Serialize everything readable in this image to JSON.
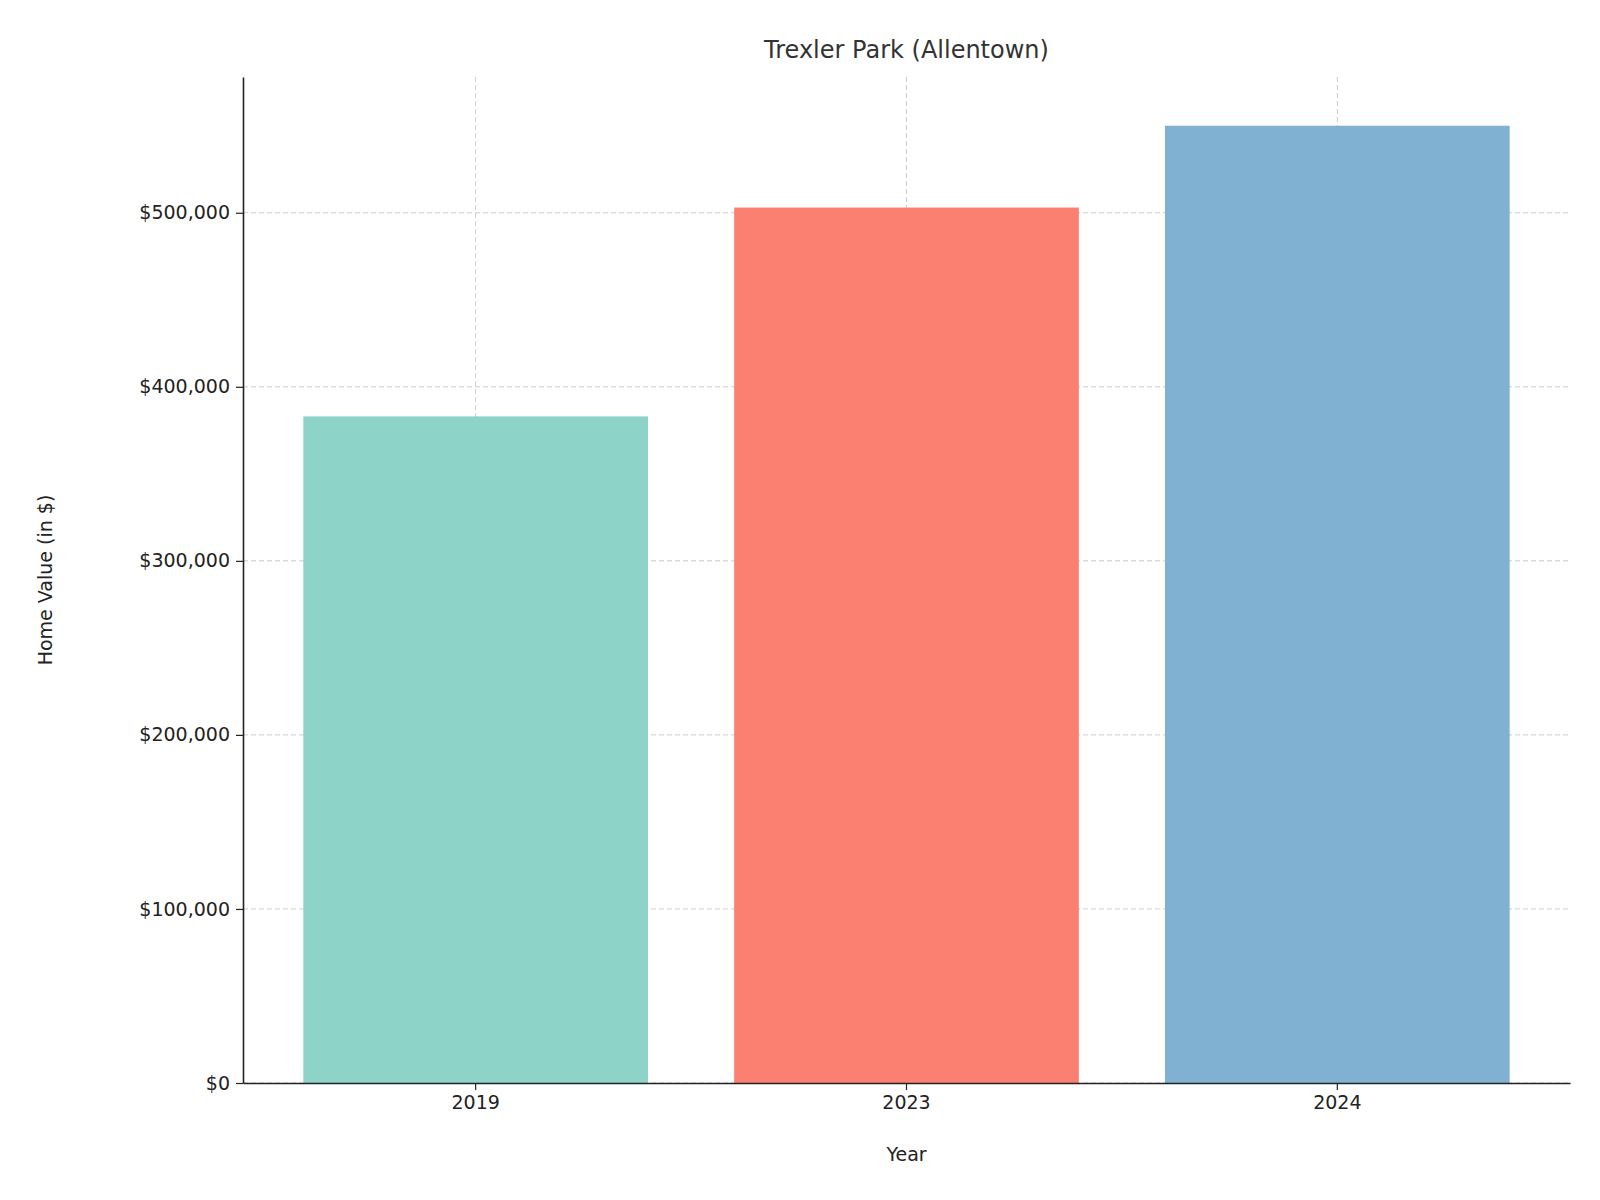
{
  "chart_data": {
    "type": "bar",
    "title": "Trexler Park (Allentown)",
    "x_label": "Year",
    "y_label": "Home Value (in $)",
    "categories": [
      "2019",
      "2023",
      "2024"
    ],
    "values": [
      383000,
      503000,
      550000
    ],
    "colors": [
      "#8dd3c7",
      "#fb8072",
      "#80b1d3"
    ],
    "ylim": [
      0,
      578000
    ],
    "yticks": [
      {
        "value": 0,
        "label": "$0"
      },
      {
        "value": 100000,
        "label": "$100,000"
      },
      {
        "value": 200000,
        "label": "$200,000"
      },
      {
        "value": 300000,
        "label": "$300,000"
      },
      {
        "value": 400000,
        "label": "$400,000"
      },
      {
        "value": 500000,
        "label": "$500,000"
      }
    ],
    "grid": true
  }
}
